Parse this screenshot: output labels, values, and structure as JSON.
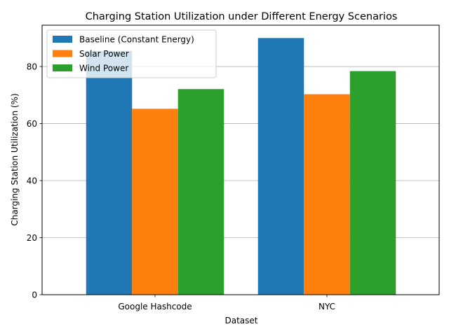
{
  "chart_data": {
    "type": "bar",
    "title": "Charging Station Utilization under Different Energy Scenarios",
    "xlabel": "Dataset",
    "ylabel": "Charging Station Utilization (%)",
    "categories": [
      "Google Hashcode",
      "NYC"
    ],
    "series": [
      {
        "name": "Baseline (Constant Energy)",
        "values": [
          85.5,
          90.0
        ],
        "color": "#1f77b4"
      },
      {
        "name": "Solar Power",
        "values": [
          65.2,
          70.3
        ],
        "color": "#ff7f0e"
      },
      {
        "name": "Wind Power",
        "values": [
          72.1,
          78.4
        ],
        "color": "#2ca02c"
      }
    ],
    "ylim": [
      0,
      94.5
    ],
    "yticks": [
      0,
      20,
      40,
      60,
      80
    ],
    "grid": "horizontal",
    "legend_position": "top-left"
  }
}
